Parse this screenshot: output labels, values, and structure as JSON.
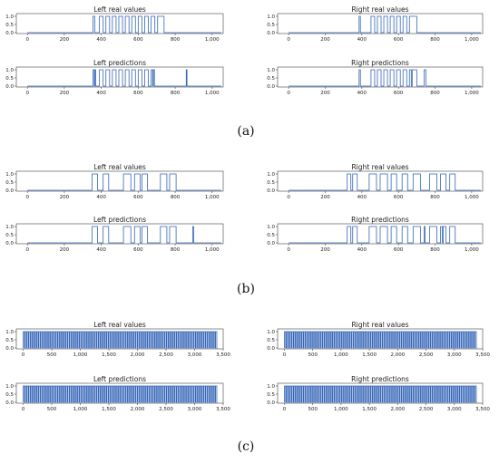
{
  "figure": {
    "panel_labels": [
      "(a)",
      "(b)",
      "(c)"
    ]
  },
  "colors": {
    "line": "#3566b8",
    "axis": "#444444",
    "text": "#222222"
  },
  "chart_data": [
    {
      "type": "line",
      "panel": "(a)",
      "side": "left",
      "title": "Left real values",
      "xlim": [
        -60,
        1060
      ],
      "ylim": [
        0,
        1
      ],
      "xticks": [
        0,
        200,
        400,
        600,
        800,
        1000
      ],
      "xtick_labels": [
        "0",
        "200",
        "400",
        "600",
        "800",
        "1,000"
      ],
      "yticks": [
        0,
        0.5,
        1
      ],
      "ytick_labels": [
        "0.0",
        "0.5",
        "1.0"
      ],
      "pulses": [
        [
          355,
          365
        ],
        [
          390,
          410
        ],
        [
          425,
          445
        ],
        [
          460,
          480
        ],
        [
          495,
          515
        ],
        [
          530,
          550
        ],
        [
          565,
          585
        ],
        [
          600,
          620
        ],
        [
          635,
          655
        ],
        [
          670,
          690
        ],
        [
          705,
          740
        ]
      ]
    },
    {
      "type": "line",
      "panel": "(a)",
      "side": "left",
      "title": "Left predictions",
      "xlim": [
        -60,
        1060
      ],
      "ylim": [
        0,
        1
      ],
      "xticks": [
        0,
        200,
        400,
        600,
        800,
        1000
      ],
      "xtick_labels": [
        "0",
        "200",
        "400",
        "600",
        "800",
        "1,000"
      ],
      "yticks": [
        0,
        0.5,
        1
      ],
      "ytick_labels": [
        "0.0",
        "0.5",
        "1.0"
      ],
      "pulses": [
        [
          355,
          362
        ],
        [
          365,
          370
        ],
        [
          390,
          410
        ],
        [
          425,
          445
        ],
        [
          460,
          480
        ],
        [
          495,
          515
        ],
        [
          530,
          550
        ],
        [
          565,
          585
        ],
        [
          600,
          620
        ],
        [
          635,
          655
        ],
        [
          670,
          678
        ],
        [
          682,
          688
        ],
        [
          860,
          864
        ]
      ]
    },
    {
      "type": "line",
      "panel": "(a)",
      "side": "right",
      "title": "Right real values",
      "xlim": [
        -60,
        1060
      ],
      "ylim": [
        0,
        1
      ],
      "xticks": [
        0,
        200,
        400,
        600,
        800,
        1000
      ],
      "xtick_labels": [
        "0",
        "200",
        "400",
        "600",
        "800",
        "1,000"
      ],
      "yticks": [
        0,
        0.5,
        1
      ],
      "ytick_labels": [
        "0.0",
        "0.5",
        "1.0"
      ],
      "pulses": [
        [
          385,
          392
        ],
        [
          450,
          470
        ],
        [
          485,
          505
        ],
        [
          520,
          540
        ],
        [
          555,
          575
        ],
        [
          590,
          610
        ],
        [
          625,
          645
        ],
        [
          660,
          700
        ]
      ]
    },
    {
      "type": "line",
      "panel": "(a)",
      "side": "right",
      "title": "Right predictions",
      "xlim": [
        -60,
        1060
      ],
      "ylim": [
        0,
        1
      ],
      "xticks": [
        0,
        200,
        400,
        600,
        800,
        1000
      ],
      "xtick_labels": [
        "0",
        "200",
        "400",
        "600",
        "800",
        "1,000"
      ],
      "yticks": [
        0,
        0.5,
        1
      ],
      "ytick_labels": [
        "0.0",
        "0.5",
        "1.0"
      ],
      "pulses": [
        [
          385,
          392
        ],
        [
          450,
          470
        ],
        [
          485,
          505
        ],
        [
          520,
          540
        ],
        [
          555,
          575
        ],
        [
          590,
          610
        ],
        [
          625,
          645
        ],
        [
          660,
          670
        ],
        [
          675,
          700
        ],
        [
          740,
          750
        ]
      ]
    },
    {
      "type": "line",
      "panel": "(b)",
      "side": "left",
      "title": "Left real values",
      "xlim": [
        -60,
        1060
      ],
      "ylim": [
        0,
        1
      ],
      "xticks": [
        0,
        200,
        400,
        600,
        800,
        1000
      ],
      "xtick_labels": [
        "0",
        "200",
        "400",
        "600",
        "800",
        "1,000"
      ],
      "yticks": [
        0,
        0.5,
        1
      ],
      "ytick_labels": [
        "0.0",
        "0.5",
        "1.0"
      ],
      "pulses": [
        [
          350,
          380
        ],
        [
          410,
          440
        ],
        [
          520,
          560
        ],
        [
          580,
          610
        ],
        [
          620,
          650
        ],
        [
          720,
          755
        ],
        [
          770,
          805
        ]
      ]
    },
    {
      "type": "line",
      "panel": "(b)",
      "side": "left",
      "title": "Left predictions",
      "xlim": [
        -60,
        1060
      ],
      "ylim": [
        0,
        1
      ],
      "xticks": [
        0,
        200,
        400,
        600,
        800,
        1000
      ],
      "xtick_labels": [
        "0",
        "200",
        "400",
        "600",
        "800",
        "1,000"
      ],
      "yticks": [
        0,
        0.5,
        1
      ],
      "ytick_labels": [
        "0.0",
        "0.5",
        "1.0"
      ],
      "pulses": [
        [
          350,
          380
        ],
        [
          410,
          440
        ],
        [
          520,
          560
        ],
        [
          580,
          610
        ],
        [
          620,
          650
        ],
        [
          720,
          755
        ],
        [
          770,
          805
        ],
        [
          895,
          900
        ]
      ]
    },
    {
      "type": "line",
      "panel": "(b)",
      "side": "right",
      "title": "Right real values",
      "xlim": [
        -60,
        1060
      ],
      "ylim": [
        0,
        1
      ],
      "xticks": [
        0,
        200,
        400,
        600,
        800,
        1000
      ],
      "xtick_labels": [
        "0",
        "200",
        "400",
        "600",
        "800",
        "1,000"
      ],
      "yticks": [
        0,
        0.5,
        1
      ],
      "ytick_labels": [
        "0.0",
        "0.5",
        "1.0"
      ],
      "pulses": [
        [
          320,
          340
        ],
        [
          350,
          375
        ],
        [
          440,
          480
        ],
        [
          500,
          540
        ],
        [
          560,
          590
        ],
        [
          620,
          650
        ],
        [
          680,
          720
        ],
        [
          770,
          810
        ],
        [
          830,
          860
        ],
        [
          880,
          910
        ]
      ]
    },
    {
      "type": "line",
      "panel": "(b)",
      "side": "right",
      "title": "Right predictions",
      "xlim": [
        -60,
        1060
      ],
      "ylim": [
        0,
        1
      ],
      "xticks": [
        0,
        200,
        400,
        600,
        800,
        1000
      ],
      "xtick_labels": [
        "0",
        "200",
        "400",
        "600",
        "800",
        "1,000"
      ],
      "yticks": [
        0,
        0.5,
        1
      ],
      "ytick_labels": [
        "0.0",
        "0.5",
        "1.0"
      ],
      "pulses": [
        [
          320,
          340
        ],
        [
          350,
          375
        ],
        [
          440,
          480
        ],
        [
          500,
          540
        ],
        [
          560,
          590
        ],
        [
          620,
          650
        ],
        [
          680,
          720
        ],
        [
          740,
          745
        ],
        [
          770,
          810
        ],
        [
          830,
          840
        ],
        [
          845,
          860
        ],
        [
          880,
          910
        ]
      ]
    },
    {
      "type": "line",
      "panel": "(c)",
      "side": "left",
      "title": "Left real values",
      "xlim": [
        -120,
        3500
      ],
      "ylim": [
        0,
        1
      ],
      "xticks": [
        0,
        500,
        1000,
        1500,
        2000,
        2500,
        3000,
        3500
      ],
      "xtick_labels": [
        "0",
        "500",
        "1,000",
        "1,500",
        "2,000",
        "2,500",
        "3,000",
        "3,500"
      ],
      "yticks": [
        0,
        0.5,
        1
      ],
      "ytick_labels": [
        "0.0",
        "0.5",
        "1.0"
      ],
      "periodic": {
        "start": 0,
        "end": 3400,
        "period": 34,
        "width": 22
      }
    },
    {
      "type": "line",
      "panel": "(c)",
      "side": "left",
      "title": "Left predictions",
      "xlim": [
        -120,
        3500
      ],
      "ylim": [
        0,
        1
      ],
      "xticks": [
        0,
        500,
        1000,
        1500,
        2000,
        2500,
        3000,
        3500
      ],
      "xtick_labels": [
        "0",
        "500",
        "1,000",
        "1,500",
        "2,000",
        "2,500",
        "3,000",
        "3,500"
      ],
      "yticks": [
        0,
        0.5,
        1
      ],
      "ytick_labels": [
        "0.0",
        "0.5",
        "1.0"
      ],
      "periodic": {
        "start": 0,
        "end": 3400,
        "period": 34,
        "width": 22
      }
    },
    {
      "type": "line",
      "panel": "(c)",
      "side": "right",
      "title": "Right real values",
      "xlim": [
        -120,
        3500
      ],
      "ylim": [
        0,
        1
      ],
      "xticks": [
        0,
        500,
        1000,
        1500,
        2000,
        2500,
        3000,
        3500
      ],
      "xtick_labels": [
        "0",
        "500",
        "1,000",
        "1,500",
        "2,000",
        "2,500",
        "3,000",
        "3,500"
      ],
      "yticks": [
        0,
        0.5,
        1
      ],
      "ytick_labels": [
        "0.0",
        "0.5",
        "1.0"
      ],
      "periodic": {
        "start": 0,
        "end": 3400,
        "period": 34,
        "width": 22
      }
    },
    {
      "type": "line",
      "panel": "(c)",
      "side": "right",
      "title": "Right predictions",
      "xlim": [
        -120,
        3500
      ],
      "ylim": [
        0,
        1
      ],
      "xticks": [
        0,
        500,
        1000,
        1500,
        2000,
        2500,
        3000,
        3500
      ],
      "xtick_labels": [
        "0",
        "500",
        "1,000",
        "1,500",
        "2,000",
        "2,500",
        "3,000",
        "3,500"
      ],
      "yticks": [
        0,
        0.5,
        1
      ],
      "ytick_labels": [
        "0.0",
        "0.5",
        "1.0"
      ],
      "periodic": {
        "start": 0,
        "end": 3400,
        "period": 34,
        "width": 22
      }
    }
  ]
}
